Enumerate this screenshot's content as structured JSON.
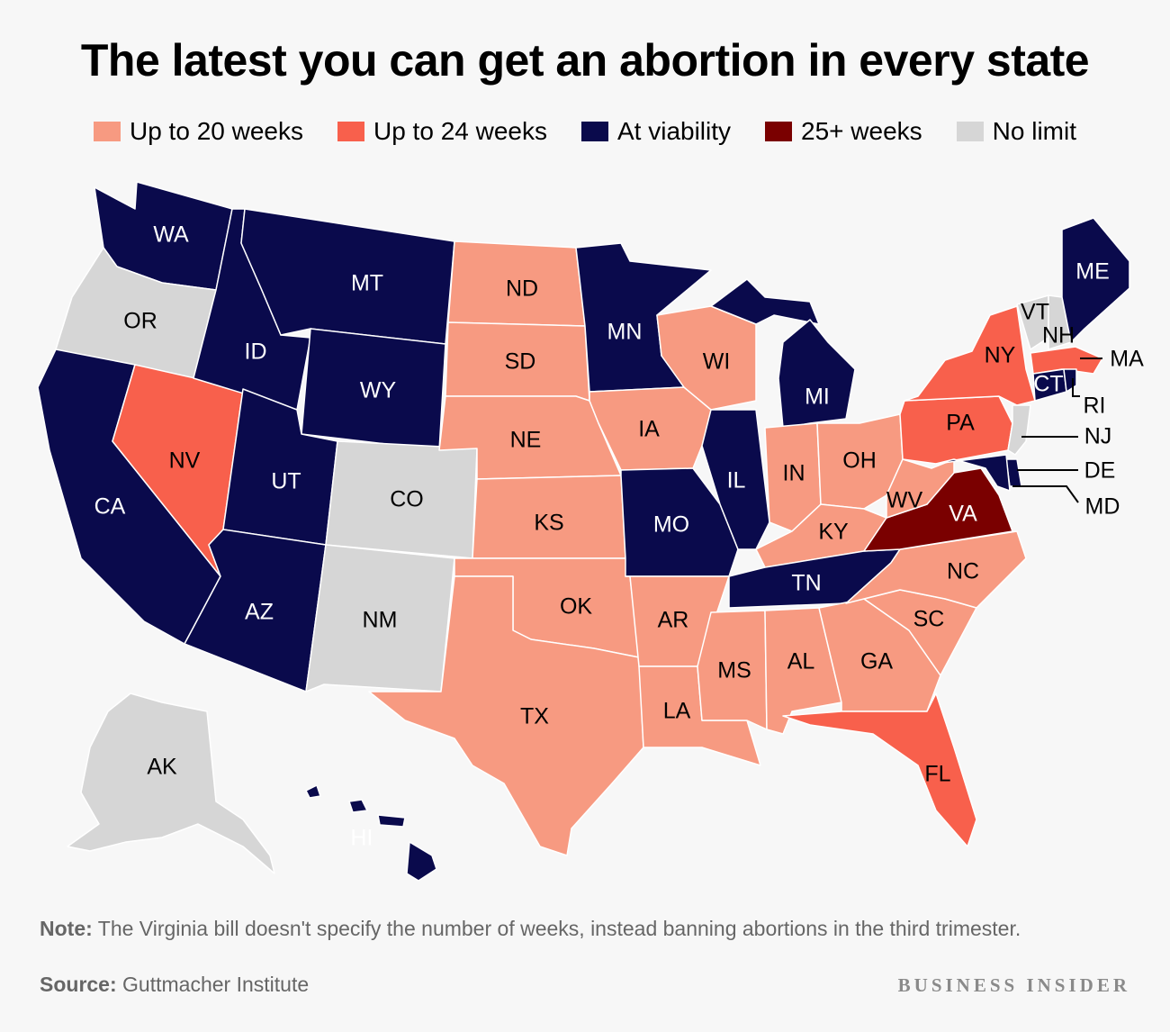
{
  "title": "The latest you can get an abortion in every state",
  "legend": [
    {
      "label": "Up to 20 weeks",
      "color": "#f79a81"
    },
    {
      "label": "Up to 24 weeks",
      "color": "#f8604c"
    },
    {
      "label": "At viability",
      "color": "#0a0a4c"
    },
    {
      "label": "25+ weeks",
      "color": "#7a0000"
    },
    {
      "label": "No limit",
      "color": "#d6d6d6"
    }
  ],
  "states": {
    "WA": "At viability",
    "OR": "No limit",
    "CA": "At viability",
    "ID": "At viability",
    "NV": "Up to 24 weeks",
    "MT": "At viability",
    "WY": "At viability",
    "UT": "At viability",
    "AZ": "At viability",
    "CO": "No limit",
    "NM": "No limit",
    "ND": "Up to 20 weeks",
    "SD": "Up to 20 weeks",
    "NE": "Up to 20 weeks",
    "KS": "Up to 20 weeks",
    "OK": "Up to 20 weeks",
    "TX": "Up to 20 weeks",
    "MN": "At viability",
    "IA": "Up to 20 weeks",
    "MO": "At viability",
    "AR": "Up to 20 weeks",
    "LA": "Up to 20 weeks",
    "WI": "Up to 20 weeks",
    "IL": "At viability",
    "MI": "At viability",
    "IN": "Up to 20 weeks",
    "OH": "Up to 20 weeks",
    "KY": "Up to 20 weeks",
    "TN": "At viability",
    "MS": "Up to 20 weeks",
    "AL": "Up to 20 weeks",
    "GA": "Up to 20 weeks",
    "FL": "Up to 24 weeks",
    "SC": "Up to 20 weeks",
    "NC": "Up to 20 weeks",
    "VA": "25+ weeks",
    "WV": "Up to 20 weeks",
    "PA": "Up to 24 weeks",
    "NY": "Up to 24 weeks",
    "VT": "No limit",
    "NH": "No limit",
    "ME": "At viability",
    "MA": "Up to 24 weeks",
    "RI": "At viability",
    "CT": "At viability",
    "NJ": "No limit",
    "DE": "At viability",
    "MD": "At viability",
    "AK": "No limit",
    "HI": "At viability"
  },
  "note_label": "Note:",
  "note_text": "The Virginia bill doesn't specify the number of weeks, instead banning abortions in the third trimester.",
  "source_label": "Source:",
  "source_text": "Guttmacher Institute",
  "brand": "BUSINESS INSIDER"
}
